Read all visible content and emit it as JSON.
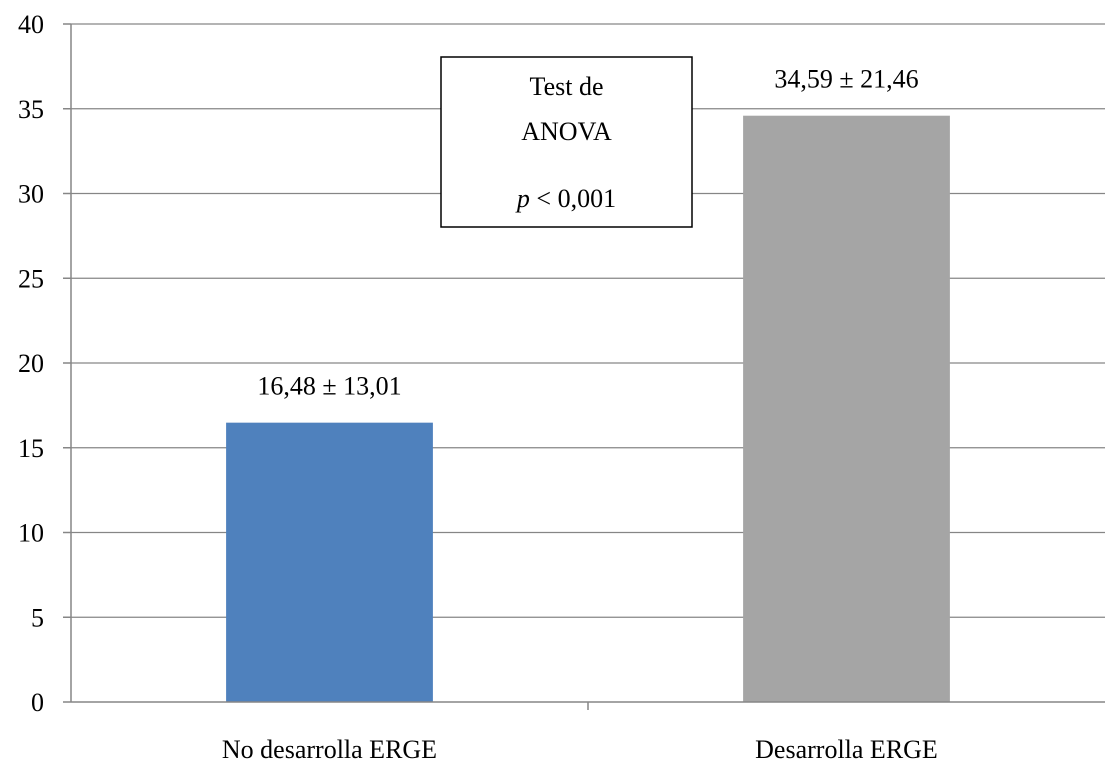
{
  "chart_data": {
    "type": "bar",
    "title": "",
    "xlabel": "",
    "ylabel": "",
    "ylim": [
      0,
      40
    ],
    "ytick_step": 5,
    "grid": true,
    "categories": [
      "No desarrolla ERGE",
      "Desarrolla ERGE"
    ],
    "values": [
      16.48,
      34.59
    ],
    "data_labels": [
      "16,48 ± 13,01",
      "34,59 ± 21,46"
    ],
    "colors": [
      "#4f81bd",
      "#a5a5a5"
    ],
    "annotation": {
      "lines": [
        "Test de",
        "ANOVA"
      ],
      "p_symbol": "p",
      "p_rest": " < 0,001"
    }
  }
}
